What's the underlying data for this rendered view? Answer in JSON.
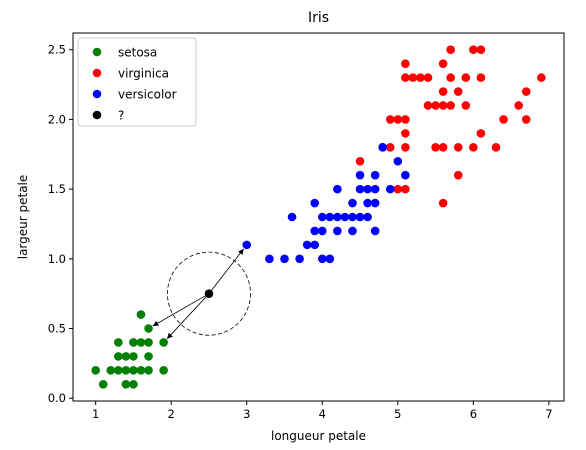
{
  "chart_data": {
    "type": "scatter",
    "title": "Iris",
    "xlabel": "longueur petale",
    "ylabel": "largeur petale",
    "xlim": [
      0.7,
      7.2
    ],
    "ylim": [
      -0.02,
      2.62
    ],
    "xticks": [
      1,
      2,
      3,
      4,
      5,
      6,
      7
    ],
    "yticks": [
      0.0,
      0.5,
      1.0,
      1.5,
      2.0,
      2.5
    ],
    "xtick_labels": [
      "1",
      "2",
      "3",
      "4",
      "5",
      "6",
      "7"
    ],
    "ytick_labels": [
      "0.0",
      "0.5",
      "1.0",
      "1.5",
      "2.0",
      "2.5"
    ],
    "grid": false,
    "legend": "top-left",
    "series": [
      {
        "name": "setosa",
        "color": "#008000",
        "points": [
          [
            1.0,
            0.2
          ],
          [
            1.1,
            0.1
          ],
          [
            1.2,
            0.2
          ],
          [
            1.3,
            0.2
          ],
          [
            1.3,
            0.3
          ],
          [
            1.3,
            0.4
          ],
          [
            1.4,
            0.1
          ],
          [
            1.4,
            0.2
          ],
          [
            1.4,
            0.3
          ],
          [
            1.5,
            0.1
          ],
          [
            1.5,
            0.2
          ],
          [
            1.5,
            0.3
          ],
          [
            1.5,
            0.4
          ],
          [
            1.6,
            0.2
          ],
          [
            1.6,
            0.4
          ],
          [
            1.6,
            0.6
          ],
          [
            1.7,
            0.2
          ],
          [
            1.7,
            0.3
          ],
          [
            1.7,
            0.4
          ],
          [
            1.7,
            0.5
          ],
          [
            1.9,
            0.2
          ],
          [
            1.9,
            0.4
          ]
        ]
      },
      {
        "name": "virginica",
        "color": "#ff0000",
        "points": [
          [
            4.5,
            1.7
          ],
          [
            4.8,
            1.8
          ],
          [
            4.9,
            1.8
          ],
          [
            4.9,
            2.0
          ],
          [
            5.0,
            1.5
          ],
          [
            5.0,
            2.0
          ],
          [
            5.1,
            1.5
          ],
          [
            5.1,
            1.8
          ],
          [
            5.1,
            1.9
          ],
          [
            5.1,
            2.0
          ],
          [
            5.1,
            2.3
          ],
          [
            5.1,
            2.4
          ],
          [
            5.2,
            2.3
          ],
          [
            5.3,
            2.3
          ],
          [
            5.4,
            2.1
          ],
          [
            5.4,
            2.3
          ],
          [
            5.5,
            1.8
          ],
          [
            5.5,
            2.1
          ],
          [
            5.6,
            1.4
          ],
          [
            5.6,
            1.8
          ],
          [
            5.6,
            2.1
          ],
          [
            5.6,
            2.2
          ],
          [
            5.6,
            2.4
          ],
          [
            5.7,
            2.1
          ],
          [
            5.7,
            2.3
          ],
          [
            5.7,
            2.5
          ],
          [
            5.8,
            1.6
          ],
          [
            5.8,
            1.8
          ],
          [
            5.8,
            2.2
          ],
          [
            5.9,
            2.1
          ],
          [
            5.9,
            2.3
          ],
          [
            6.0,
            1.8
          ],
          [
            6.0,
            2.5
          ],
          [
            6.1,
            1.9
          ],
          [
            6.1,
            2.3
          ],
          [
            6.1,
            2.5
          ],
          [
            6.3,
            1.8
          ],
          [
            6.4,
            2.0
          ],
          [
            6.6,
            2.1
          ],
          [
            6.7,
            2.0
          ],
          [
            6.7,
            2.2
          ],
          [
            6.9,
            2.3
          ]
        ]
      },
      {
        "name": "versicolor",
        "color": "#0000ff",
        "points": [
          [
            3.0,
            1.1
          ],
          [
            3.3,
            1.0
          ],
          [
            3.5,
            1.0
          ],
          [
            3.6,
            1.3
          ],
          [
            3.7,
            1.0
          ],
          [
            3.8,
            1.1
          ],
          [
            3.9,
            1.1
          ],
          [
            3.9,
            1.2
          ],
          [
            3.9,
            1.4
          ],
          [
            4.0,
            1.0
          ],
          [
            4.0,
            1.2
          ],
          [
            4.0,
            1.3
          ],
          [
            4.1,
            1.0
          ],
          [
            4.1,
            1.3
          ],
          [
            4.2,
            1.2
          ],
          [
            4.2,
            1.3
          ],
          [
            4.2,
            1.5
          ],
          [
            4.3,
            1.3
          ],
          [
            4.4,
            1.2
          ],
          [
            4.4,
            1.3
          ],
          [
            4.4,
            1.4
          ],
          [
            4.5,
            1.3
          ],
          [
            4.5,
            1.5
          ],
          [
            4.5,
            1.6
          ],
          [
            4.6,
            1.3
          ],
          [
            4.6,
            1.4
          ],
          [
            4.6,
            1.5
          ],
          [
            4.7,
            1.2
          ],
          [
            4.7,
            1.4
          ],
          [
            4.7,
            1.5
          ],
          [
            4.7,
            1.6
          ],
          [
            4.8,
            1.8
          ],
          [
            4.9,
            1.5
          ],
          [
            5.0,
            1.7
          ],
          [
            5.1,
            1.6
          ]
        ]
      },
      {
        "name": "?",
        "color": "#000000",
        "points": [
          [
            2.5,
            0.75
          ]
        ]
      }
    ],
    "neighbor_arrows": [
      [
        1.7,
        0.5
      ],
      [
        1.9,
        0.4
      ],
      [
        3.0,
        1.1
      ]
    ],
    "radius": 0.55
  }
}
